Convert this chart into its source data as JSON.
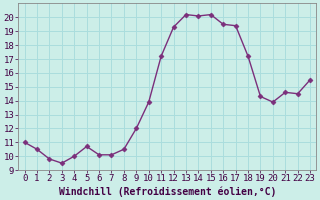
{
  "x": [
    0,
    1,
    2,
    3,
    4,
    5,
    6,
    7,
    8,
    9,
    10,
    11,
    12,
    13,
    14,
    15,
    16,
    17,
    18,
    19,
    20,
    21,
    22,
    23
  ],
  "y": [
    11,
    10.5,
    9.8,
    9.5,
    10,
    10.7,
    10.1,
    10.1,
    10.5,
    12,
    13.9,
    17.2,
    19.3,
    20.2,
    20.1,
    20.2,
    19.5,
    19.4,
    17.2,
    14.3,
    13.9,
    14.6,
    14.5,
    15.5
  ],
  "line_color": "#7b2f7b",
  "marker": "D",
  "marker_size": 2.5,
  "bg_color": "#cceee8",
  "grid_color": "#aadddd",
  "xlabel": "Windchill (Refroidissement éolien,°C)",
  "xlim": [
    -0.5,
    23.5
  ],
  "ylim": [
    9,
    21
  ],
  "yticks": [
    9,
    10,
    11,
    12,
    13,
    14,
    15,
    16,
    17,
    18,
    19,
    20
  ],
  "xticks": [
    0,
    1,
    2,
    3,
    4,
    5,
    6,
    7,
    8,
    9,
    10,
    11,
    12,
    13,
    14,
    15,
    16,
    17,
    18,
    19,
    20,
    21,
    22,
    23
  ],
  "tick_fontsize": 6.5,
  "xlabel_fontsize": 7,
  "spine_color": "#888888",
  "linewidth": 1.0
}
